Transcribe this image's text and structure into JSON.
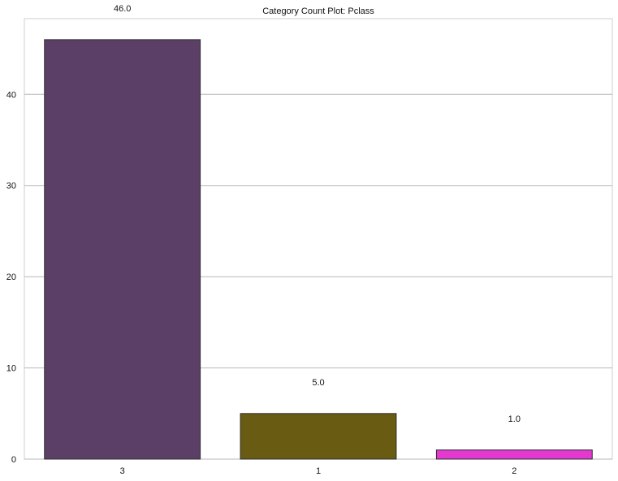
{
  "chart_data": {
    "type": "bar",
    "title": "Category Count Plot: Pclass",
    "xlabel": "",
    "ylabel": "",
    "categories": [
      "3",
      "1",
      "2"
    ],
    "values": [
      46,
      5,
      1
    ],
    "data_labels": [
      "46.0",
      "5.0",
      "1.0"
    ],
    "colors": [
      "#5c3f66",
      "#695b12",
      "#e339d0"
    ],
    "ylim": [
      0,
      48.3
    ],
    "yticks": [
      0,
      10,
      20,
      30,
      40
    ],
    "ytick_labels": [
      "0",
      "10",
      "20",
      "30",
      "40"
    ],
    "grid": "horizontal",
    "legend": "none"
  }
}
